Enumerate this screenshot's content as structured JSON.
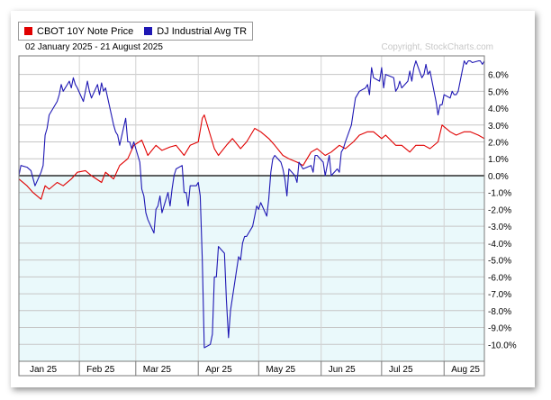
{
  "chart_data": {
    "type": "line",
    "date_range": "02 January 2025 - 21 August 2025",
    "watermark": "Copyright, StockCharts.com",
    "y_unit": "%",
    "ylim": [
      -11,
      7.1
    ],
    "y_ticks": [
      6,
      5,
      4,
      3,
      2,
      1,
      0,
      -1,
      -2,
      -3,
      -4,
      -5,
      -6,
      -7,
      -8,
      -9,
      -10
    ],
    "y_tick_labels": [
      "6.0%",
      "5.0%",
      "4.0%",
      "3.0%",
      "2.0%",
      "1.0%",
      "0.0%",
      "-1.0%",
      "-2.0%",
      "-3.0%",
      "-4.0%",
      "-5.0%",
      "-6.0%",
      "-7.0%",
      "-8.0%",
      "-9.0%",
      "-10.0%"
    ],
    "grid": true,
    "legend_position": "top-left",
    "x_range": [
      "2025-01-02",
      "2025-08-21"
    ],
    "x_month_labels": [
      {
        "label": "Jan 25",
        "date": "2025-01-02"
      },
      {
        "label": "Feb 25",
        "date": "2025-02-01"
      },
      {
        "label": "Mar 25",
        "date": "2025-03-01"
      },
      {
        "label": "Apr 25",
        "date": "2025-04-01"
      },
      {
        "label": "May 25",
        "date": "2025-05-01"
      },
      {
        "label": "Jun 25",
        "date": "2025-06-01"
      },
      {
        "label": "Jul 25",
        "date": "2025-07-01"
      },
      {
        "label": "Aug 25",
        "date": "2025-08-01"
      }
    ],
    "series": [
      {
        "name": "CBOT 10Y Note Price",
        "color": "#e00000",
        "points": [
          [
            "2025-01-02",
            -0.2
          ],
          [
            "2025-01-06",
            -0.6
          ],
          [
            "2025-01-09",
            -1.0
          ],
          [
            "2025-01-13",
            -1.4
          ],
          [
            "2025-01-15",
            -0.6
          ],
          [
            "2025-01-17",
            -0.8
          ],
          [
            "2025-01-21",
            -0.4
          ],
          [
            "2025-01-24",
            -0.6
          ],
          [
            "2025-01-28",
            -0.2
          ],
          [
            "2025-01-31",
            0.2
          ],
          [
            "2025-02-04",
            0.3
          ],
          [
            "2025-02-07",
            0.0
          ],
          [
            "2025-02-12",
            -0.4
          ],
          [
            "2025-02-14",
            0.2
          ],
          [
            "2025-02-18",
            -0.2
          ],
          [
            "2025-02-21",
            0.6
          ],
          [
            "2025-02-25",
            1.0
          ],
          [
            "2025-02-28",
            1.8
          ],
          [
            "2025-03-04",
            2.1
          ],
          [
            "2025-03-07",
            1.2
          ],
          [
            "2025-03-11",
            1.8
          ],
          [
            "2025-03-14",
            1.5
          ],
          [
            "2025-03-18",
            1.7
          ],
          [
            "2025-03-21",
            1.8
          ],
          [
            "2025-03-25",
            1.2
          ],
          [
            "2025-03-28",
            1.8
          ],
          [
            "2025-04-01",
            2.0
          ],
          [
            "2025-04-03",
            3.4
          ],
          [
            "2025-04-04",
            3.6
          ],
          [
            "2025-04-07",
            2.4
          ],
          [
            "2025-04-09",
            1.6
          ],
          [
            "2025-04-11",
            1.2
          ],
          [
            "2025-04-15",
            1.8
          ],
          [
            "2025-04-18",
            2.2
          ],
          [
            "2025-04-22",
            1.6
          ],
          [
            "2025-04-25",
            2.0
          ],
          [
            "2025-04-29",
            2.8
          ],
          [
            "2025-05-02",
            2.6
          ],
          [
            "2025-05-06",
            2.2
          ],
          [
            "2025-05-09",
            1.8
          ],
          [
            "2025-05-13",
            1.2
          ],
          [
            "2025-05-16",
            1.0
          ],
          [
            "2025-05-20",
            0.8
          ],
          [
            "2025-05-23",
            0.6
          ],
          [
            "2025-05-27",
            1.4
          ],
          [
            "2025-05-30",
            1.6
          ],
          [
            "2025-06-03",
            1.2
          ],
          [
            "2025-06-06",
            1.4
          ],
          [
            "2025-06-10",
            1.8
          ],
          [
            "2025-06-13",
            1.6
          ],
          [
            "2025-06-17",
            2.0
          ],
          [
            "2025-06-20",
            2.4
          ],
          [
            "2025-06-24",
            2.6
          ],
          [
            "2025-06-27",
            2.6
          ],
          [
            "2025-07-01",
            2.2
          ],
          [
            "2025-07-03",
            2.4
          ],
          [
            "2025-07-08",
            1.8
          ],
          [
            "2025-07-11",
            1.8
          ],
          [
            "2025-07-15",
            1.4
          ],
          [
            "2025-07-18",
            1.8
          ],
          [
            "2025-07-22",
            1.8
          ],
          [
            "2025-07-25",
            1.6
          ],
          [
            "2025-07-29",
            2.0
          ],
          [
            "2025-07-31",
            3.0
          ],
          [
            "2025-08-04",
            2.6
          ],
          [
            "2025-08-07",
            2.4
          ],
          [
            "2025-08-11",
            2.6
          ],
          [
            "2025-08-14",
            2.6
          ],
          [
            "2025-08-18",
            2.4
          ],
          [
            "2025-08-21",
            2.2
          ]
        ]
      },
      {
        "name": "DJ Industrial Avg TR",
        "color": "#1f18b4",
        "points": [
          [
            "2025-01-02",
            0.0
          ],
          [
            "2025-01-03",
            0.6
          ],
          [
            "2025-01-06",
            0.5
          ],
          [
            "2025-01-08",
            0.3
          ],
          [
            "2025-01-10",
            -0.6
          ],
          [
            "2025-01-13",
            0.2
          ],
          [
            "2025-01-14",
            0.6
          ],
          [
            "2025-01-15",
            2.4
          ],
          [
            "2025-01-16",
            2.8
          ],
          [
            "2025-01-17",
            3.6
          ],
          [
            "2025-01-21",
            4.4
          ],
          [
            "2025-01-22",
            4.8
          ],
          [
            "2025-01-23",
            5.4
          ],
          [
            "2025-01-24",
            5.0
          ],
          [
            "2025-01-27",
            5.6
          ],
          [
            "2025-01-28",
            5.2
          ],
          [
            "2025-01-29",
            5.8
          ],
          [
            "2025-01-30",
            5.4
          ],
          [
            "2025-01-31",
            5.2
          ],
          [
            "2025-02-03",
            4.4
          ],
          [
            "2025-02-04",
            5.0
          ],
          [
            "2025-02-05",
            5.6
          ],
          [
            "2025-02-06",
            5.0
          ],
          [
            "2025-02-07",
            4.6
          ],
          [
            "2025-02-10",
            5.4
          ],
          [
            "2025-02-11",
            4.8
          ],
          [
            "2025-02-12",
            5.5
          ],
          [
            "2025-02-13",
            5.0
          ],
          [
            "2025-02-14",
            5.2
          ],
          [
            "2025-02-18",
            3.0
          ],
          [
            "2025-02-19",
            2.6
          ],
          [
            "2025-02-20",
            2.4
          ],
          [
            "2025-02-21",
            1.8
          ],
          [
            "2025-02-24",
            3.4
          ],
          [
            "2025-02-25",
            2.0
          ],
          [
            "2025-02-26",
            2.0
          ],
          [
            "2025-02-27",
            1.6
          ],
          [
            "2025-02-28",
            2.0
          ],
          [
            "2025-03-03",
            0.8
          ],
          [
            "2025-03-04",
            -0.8
          ],
          [
            "2025-03-05",
            -1.2
          ],
          [
            "2025-03-06",
            -2.2
          ],
          [
            "2025-03-07",
            -2.6
          ],
          [
            "2025-03-10",
            -3.4
          ],
          [
            "2025-03-11",
            -2.0
          ],
          [
            "2025-03-12",
            -1.8
          ],
          [
            "2025-03-13",
            -1.2
          ],
          [
            "2025-03-14",
            -2.2
          ],
          [
            "2025-03-17",
            -1.0
          ],
          [
            "2025-03-18",
            -1.8
          ],
          [
            "2025-03-19",
            -0.8
          ],
          [
            "2025-03-20",
            0.0
          ],
          [
            "2025-03-21",
            0.4
          ],
          [
            "2025-03-24",
            0.6
          ],
          [
            "2025-03-25",
            -1.0
          ],
          [
            "2025-03-26",
            -1.0
          ],
          [
            "2025-03-27",
            -1.8
          ],
          [
            "2025-03-28",
            -0.6
          ],
          [
            "2025-03-31",
            -0.6
          ],
          [
            "2025-04-01",
            -0.4
          ],
          [
            "2025-04-02",
            -1.2
          ],
          [
            "2025-04-03",
            -5.0
          ],
          [
            "2025-04-04",
            -10.2
          ],
          [
            "2025-04-07",
            -10.0
          ],
          [
            "2025-04-08",
            -9.4
          ],
          [
            "2025-04-09",
            -6.0
          ],
          [
            "2025-04-10",
            -6.0
          ],
          [
            "2025-04-11",
            -4.2
          ],
          [
            "2025-04-14",
            -4.6
          ],
          [
            "2025-04-15",
            -7.4
          ],
          [
            "2025-04-16",
            -9.6
          ],
          [
            "2025-04-17",
            -8.0
          ],
          [
            "2025-04-21",
            -4.8
          ],
          [
            "2025-04-22",
            -5.0
          ],
          [
            "2025-04-23",
            -4.0
          ],
          [
            "2025-04-24",
            -3.6
          ],
          [
            "2025-04-25",
            -3.6
          ],
          [
            "2025-04-28",
            -3.0
          ],
          [
            "2025-04-29",
            -2.4
          ],
          [
            "2025-04-30",
            -1.8
          ],
          [
            "2025-05-01",
            -2.0
          ],
          [
            "2025-05-02",
            -1.6
          ],
          [
            "2025-05-05",
            -2.4
          ],
          [
            "2025-05-06",
            -1.4
          ],
          [
            "2025-05-07",
            0.2
          ],
          [
            "2025-05-08",
            1.0
          ],
          [
            "2025-05-09",
            1.2
          ],
          [
            "2025-05-12",
            0.8
          ],
          [
            "2025-05-13",
            0.4
          ],
          [
            "2025-05-14",
            -0.2
          ],
          [
            "2025-05-15",
            -1.2
          ],
          [
            "2025-05-16",
            0.4
          ],
          [
            "2025-05-19",
            0.0
          ],
          [
            "2025-05-20",
            -0.4
          ],
          [
            "2025-05-21",
            0.8
          ],
          [
            "2025-05-22",
            0.6
          ],
          [
            "2025-05-23",
            0.4
          ],
          [
            "2025-05-27",
            0.6
          ],
          [
            "2025-05-28",
            0.2
          ],
          [
            "2025-05-29",
            1.2
          ],
          [
            "2025-05-30",
            1.2
          ],
          [
            "2025-06-02",
            0.8
          ],
          [
            "2025-06-03",
            0.0
          ],
          [
            "2025-06-04",
            0.6
          ],
          [
            "2025-06-05",
            1.2
          ],
          [
            "2025-06-06",
            0.0
          ],
          [
            "2025-06-09",
            0.4
          ],
          [
            "2025-06-10",
            0.2
          ],
          [
            "2025-06-11",
            1.4
          ],
          [
            "2025-06-12",
            1.6
          ],
          [
            "2025-06-13",
            2.0
          ],
          [
            "2025-06-16",
            3.0
          ],
          [
            "2025-06-17",
            3.8
          ],
          [
            "2025-06-18",
            4.6
          ],
          [
            "2025-06-20",
            5.0
          ],
          [
            "2025-06-23",
            5.2
          ],
          [
            "2025-06-24",
            5.4
          ],
          [
            "2025-06-25",
            4.8
          ],
          [
            "2025-06-26",
            6.4
          ],
          [
            "2025-06-27",
            5.8
          ],
          [
            "2025-06-30",
            5.6
          ],
          [
            "2025-07-01",
            6.4
          ],
          [
            "2025-07-02",
            5.2
          ],
          [
            "2025-07-03",
            6.0
          ],
          [
            "2025-07-07",
            5.8
          ],
          [
            "2025-07-08",
            5.0
          ],
          [
            "2025-07-09",
            5.2
          ],
          [
            "2025-07-10",
            5.6
          ],
          [
            "2025-07-11",
            5.2
          ],
          [
            "2025-07-14",
            5.6
          ],
          [
            "2025-07-15",
            6.2
          ],
          [
            "2025-07-16",
            5.6
          ],
          [
            "2025-07-17",
            6.4
          ],
          [
            "2025-07-18",
            6.8
          ],
          [
            "2025-07-21",
            5.8
          ],
          [
            "2025-07-22",
            6.0
          ],
          [
            "2025-07-23",
            6.6
          ],
          [
            "2025-07-24",
            6.0
          ],
          [
            "2025-07-25",
            6.2
          ],
          [
            "2025-07-28",
            4.4
          ],
          [
            "2025-07-29",
            3.6
          ],
          [
            "2025-07-30",
            4.2
          ],
          [
            "2025-07-31",
            4.2
          ],
          [
            "2025-08-01",
            4.8
          ],
          [
            "2025-08-04",
            4.6
          ],
          [
            "2025-08-05",
            5.0
          ],
          [
            "2025-08-06",
            4.8
          ],
          [
            "2025-08-07",
            4.8
          ],
          [
            "2025-08-08",
            5.0
          ],
          [
            "2025-08-11",
            6.8
          ],
          [
            "2025-08-12",
            6.6
          ],
          [
            "2025-08-13",
            6.8
          ],
          [
            "2025-08-14",
            6.8
          ],
          [
            "2025-08-15",
            6.7
          ],
          [
            "2025-08-18",
            6.8
          ],
          [
            "2025-08-19",
            6.8
          ],
          [
            "2025-08-20",
            6.6
          ],
          [
            "2025-08-21",
            6.8
          ]
        ]
      }
    ]
  }
}
